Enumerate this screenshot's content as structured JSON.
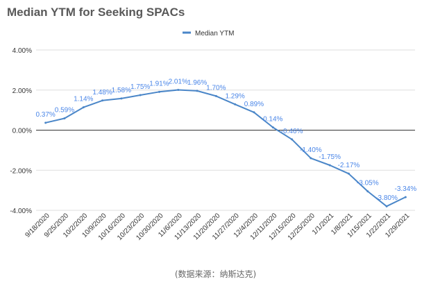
{
  "chart_data": {
    "type": "line",
    "title": "Median YTM for Seeking SPACs",
    "xlabel": "",
    "ylabel": "",
    "categories": [
      "9/18/2020",
      "9/25/2020",
      "10/2/2020",
      "10/9/2020",
      "10/16/2020",
      "10/23/2020",
      "10/30/2020",
      "11/6/2020",
      "11/13/2020",
      "11/20/2020",
      "11/27/2020",
      "12/4/2020",
      "12/11/2020",
      "12/15/2020",
      "12/25/2020",
      "1/1/2021",
      "1/8/2021",
      "1/15/2021",
      "1/22/2021",
      "1/29/2021"
    ],
    "series": [
      {
        "name": "Median YTM",
        "color": "#4a86c8",
        "values": [
          0.37,
          0.59,
          1.14,
          1.48,
          1.58,
          1.75,
          1.91,
          2.01,
          1.96,
          1.7,
          1.29,
          0.89,
          0.14,
          -0.46,
          -1.4,
          -1.75,
          -2.17,
          -3.05,
          -3.8,
          -3.34
        ],
        "labels": [
          "0.37%",
          "0.59%",
          "1.14%",
          "1.48%",
          "1.58%",
          "1.75%",
          "1.91%",
          "2.01%",
          "1.96%",
          "1.70%",
          "1.29%",
          "0.89%",
          "0.14%",
          "-0.46%",
          "-1.40%",
          "-1.75%",
          "-2.17%",
          "-3.05%",
          "-3.80%",
          "-3.34%"
        ]
      }
    ],
    "ylim": [
      -4,
      4
    ],
    "yticks": [
      "4.00%",
      "2.00%",
      "0.00%",
      "-2.00%",
      "-4.00%"
    ],
    "ytick_values": [
      4,
      2,
      0,
      -2,
      -4
    ],
    "grid": true,
    "legend": "top-center"
  },
  "source_note": "(数据来源：纳斯达克)"
}
